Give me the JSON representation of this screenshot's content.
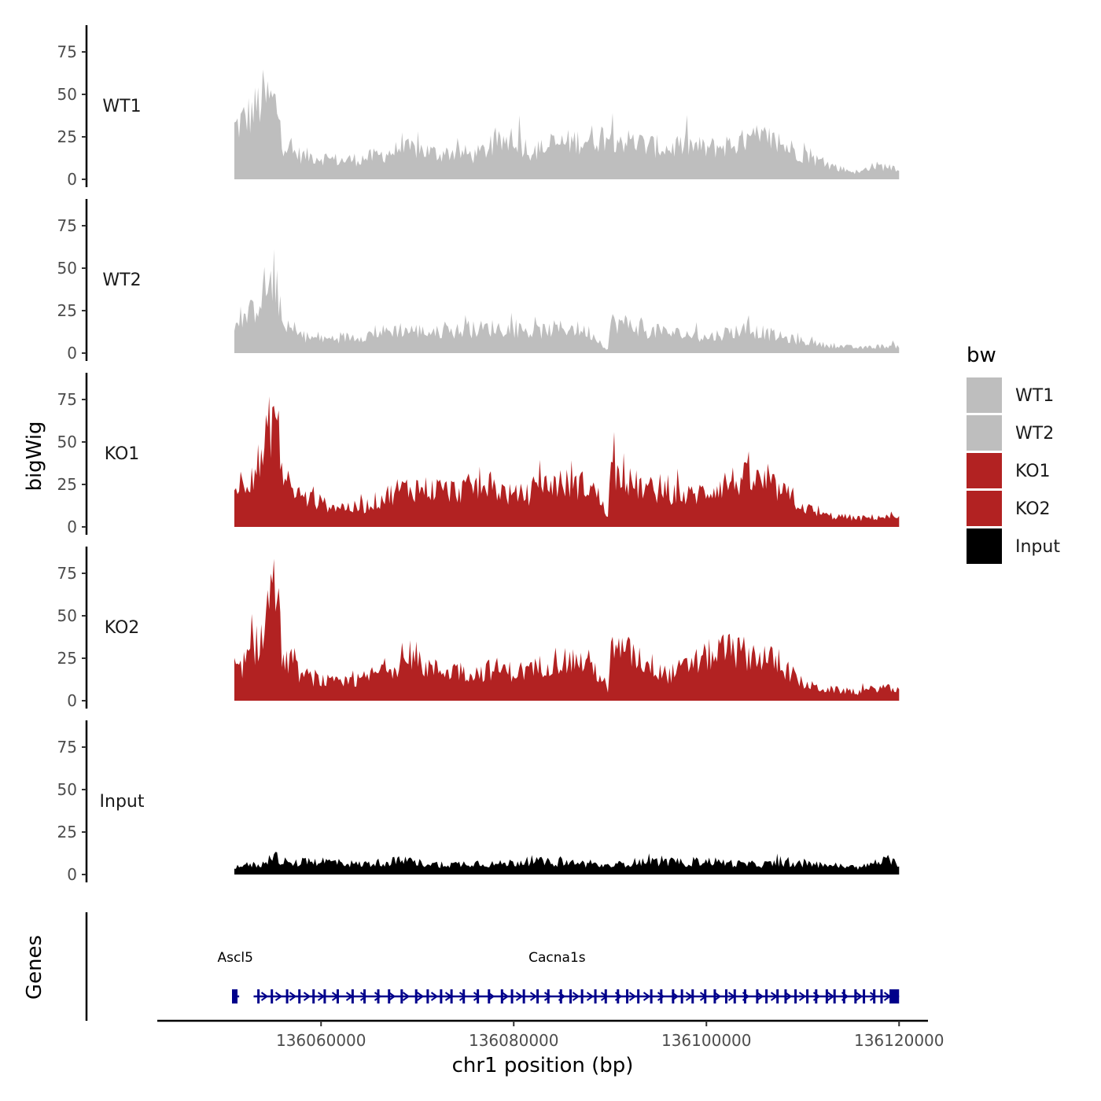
{
  "chart_data": {
    "type": "area",
    "description": "Genome browser coverage tracks (bigWig) with gene annotation",
    "ylabel": "bigWig",
    "genes_label": "Genes",
    "xlabel": "chr1 position (bp)",
    "x_range": [
      136043000,
      136123000
    ],
    "data_x_range": [
      136051000,
      136120000
    ],
    "x_ticks": [
      136060000,
      136080000,
      136100000,
      136120000
    ],
    "x_tick_labels": [
      "136060000",
      "136080000",
      "136100000",
      "136120000"
    ],
    "y_range": [
      0,
      90
    ],
    "y_ticks": [
      0,
      25,
      50,
      75
    ],
    "y_tick_labels": [
      "0",
      "25",
      "50",
      "75"
    ],
    "legend": {
      "title": "bw",
      "position": "right",
      "entries": [
        {
          "label": "WT1",
          "color": "#bebebe"
        },
        {
          "label": "WT2",
          "color": "#bebebe"
        },
        {
          "label": "KO1",
          "color": "#b22222"
        },
        {
          "label": "KO2",
          "color": "#b22222"
        },
        {
          "label": "Input",
          "color": "#000000"
        }
      ]
    },
    "tracks": [
      {
        "name": "WT1",
        "color": "#bebebe",
        "profile": [
          [
            136051000,
            30
          ],
          [
            136052000,
            35
          ],
          [
            136053000,
            40
          ],
          [
            136054000,
            48
          ],
          [
            136055000,
            45
          ],
          [
            136055500,
            42
          ],
          [
            136056000,
            22
          ],
          [
            136057000,
            16
          ],
          [
            136058000,
            14
          ],
          [
            136060000,
            13
          ],
          [
            136062000,
            11
          ],
          [
            136064000,
            12
          ],
          [
            136066000,
            14
          ],
          [
            136068000,
            17
          ],
          [
            136070000,
            18
          ],
          [
            136072000,
            15
          ],
          [
            136074000,
            16
          ],
          [
            136076000,
            14
          ],
          [
            136078000,
            20
          ],
          [
            136080000,
            24
          ],
          [
            136082000,
            16
          ],
          [
            136084000,
            20
          ],
          [
            136086000,
            22
          ],
          [
            136088000,
            24
          ],
          [
            136090000,
            26
          ],
          [
            136092000,
            22
          ],
          [
            136094000,
            20
          ],
          [
            136096000,
            18
          ],
          [
            136098000,
            20
          ],
          [
            136100000,
            18
          ],
          [
            136102000,
            20
          ],
          [
            136104000,
            22
          ],
          [
            136106000,
            24
          ],
          [
            136108000,
            20
          ],
          [
            136110000,
            15
          ],
          [
            136112000,
            10
          ],
          [
            136114000,
            6
          ],
          [
            136116000,
            4
          ],
          [
            136117000,
            8
          ],
          [
            136120000,
            7
          ]
        ]
      },
      {
        "name": "WT2",
        "color": "#bebebe",
        "profile": [
          [
            136051000,
            14
          ],
          [
            136052000,
            20
          ],
          [
            136053000,
            25
          ],
          [
            136054000,
            38
          ],
          [
            136055000,
            40
          ],
          [
            136055500,
            36
          ],
          [
            136056000,
            16
          ],
          [
            136058000,
            10
          ],
          [
            136060000,
            8
          ],
          [
            136062000,
            9
          ],
          [
            136064000,
            10
          ],
          [
            136066000,
            12
          ],
          [
            136068000,
            14
          ],
          [
            136070000,
            13
          ],
          [
            136072000,
            12
          ],
          [
            136074000,
            13
          ],
          [
            136076000,
            14
          ],
          [
            136078000,
            15
          ],
          [
            136080000,
            14
          ],
          [
            136082000,
            12
          ],
          [
            136084000,
            14
          ],
          [
            136086000,
            15
          ],
          [
            136088000,
            12
          ],
          [
            136089800,
            2
          ],
          [
            136090000,
            18
          ],
          [
            136092000,
            17
          ],
          [
            136094000,
            13
          ],
          [
            136096000,
            12
          ],
          [
            136098000,
            11
          ],
          [
            136100000,
            9
          ],
          [
            136102000,
            12
          ],
          [
            136104000,
            14
          ],
          [
            136106000,
            12
          ],
          [
            136108000,
            9
          ],
          [
            136110000,
            7
          ],
          [
            136112000,
            5
          ],
          [
            136114000,
            4
          ],
          [
            136116000,
            3
          ],
          [
            136118000,
            4
          ],
          [
            136120000,
            4
          ]
        ]
      },
      {
        "name": "KO1",
        "color": "#b22222",
        "profile": [
          [
            136051000,
            22
          ],
          [
            136052000,
            28
          ],
          [
            136053000,
            34
          ],
          [
            136054000,
            40
          ],
          [
            136055000,
            70
          ],
          [
            136055500,
            58
          ],
          [
            136056000,
            30
          ],
          [
            136057000,
            22
          ],
          [
            136058000,
            18
          ],
          [
            136060000,
            14
          ],
          [
            136062000,
            12
          ],
          [
            136064000,
            11
          ],
          [
            136066000,
            16
          ],
          [
            136068000,
            22
          ],
          [
            136070000,
            23
          ],
          [
            136072000,
            22
          ],
          [
            136074000,
            21
          ],
          [
            136076000,
            24
          ],
          [
            136078000,
            23
          ],
          [
            136080000,
            18
          ],
          [
            136082000,
            20
          ],
          [
            136084000,
            26
          ],
          [
            136086000,
            25
          ],
          [
            136088000,
            24
          ],
          [
            136089500,
            12
          ],
          [
            136089800,
            3
          ],
          [
            136090000,
            32
          ],
          [
            136092000,
            26
          ],
          [
            136094000,
            22
          ],
          [
            136096000,
            20
          ],
          [
            136098000,
            18
          ],
          [
            136100000,
            21
          ],
          [
            136102000,
            26
          ],
          [
            136104000,
            28
          ],
          [
            136106000,
            26
          ],
          [
            136108000,
            20
          ],
          [
            136110000,
            12
          ],
          [
            136112000,
            7
          ],
          [
            136114000,
            6
          ],
          [
            136116000,
            5
          ],
          [
            136118000,
            6
          ],
          [
            136120000,
            5
          ]
        ]
      },
      {
        "name": "KO2",
        "color": "#b22222",
        "profile": [
          [
            136051000,
            15
          ],
          [
            136052000,
            22
          ],
          [
            136053000,
            30
          ],
          [
            136054000,
            40
          ],
          [
            136055000,
            72
          ],
          [
            136055500,
            55
          ],
          [
            136056000,
            26
          ],
          [
            136057000,
            20
          ],
          [
            136058000,
            15
          ],
          [
            136060000,
            12
          ],
          [
            136062000,
            10
          ],
          [
            136064000,
            12
          ],
          [
            136066000,
            17
          ],
          [
            136068000,
            22
          ],
          [
            136070000,
            22
          ],
          [
            136072000,
            18
          ],
          [
            136074000,
            18
          ],
          [
            136076000,
            16
          ],
          [
            136078000,
            19
          ],
          [
            136080000,
            17
          ],
          [
            136082000,
            18
          ],
          [
            136084000,
            24
          ],
          [
            136086000,
            24
          ],
          [
            136088000,
            22
          ],
          [
            136089500,
            10
          ],
          [
            136089800,
            3
          ],
          [
            136090000,
            30
          ],
          [
            136092000,
            28
          ],
          [
            136094000,
            22
          ],
          [
            136096000,
            15
          ],
          [
            136098000,
            20
          ],
          [
            136100000,
            26
          ],
          [
            136102000,
            30
          ],
          [
            136104000,
            28
          ],
          [
            136106000,
            26
          ],
          [
            136108000,
            20
          ],
          [
            136110000,
            10
          ],
          [
            136112000,
            7
          ],
          [
            136114000,
            6
          ],
          [
            136116000,
            5
          ],
          [
            136118000,
            8
          ],
          [
            136120000,
            6
          ]
        ]
      },
      {
        "name": "Input",
        "color": "#000000",
        "profile": [
          [
            136051000,
            5
          ],
          [
            136054000,
            6
          ],
          [
            136055000,
            12
          ],
          [
            136055500,
            10
          ],
          [
            136056000,
            6
          ],
          [
            136058000,
            7
          ],
          [
            136060000,
            8
          ],
          [
            136062000,
            7
          ],
          [
            136064000,
            6
          ],
          [
            136066000,
            7
          ],
          [
            136068000,
            8
          ],
          [
            136070000,
            7
          ],
          [
            136072000,
            6
          ],
          [
            136074000,
            6
          ],
          [
            136076000,
            7
          ],
          [
            136078000,
            6
          ],
          [
            136080000,
            7
          ],
          [
            136082000,
            8
          ],
          [
            136084000,
            7
          ],
          [
            136086000,
            7
          ],
          [
            136088000,
            6
          ],
          [
            136090000,
            5
          ],
          [
            136092000,
            7
          ],
          [
            136094000,
            8
          ],
          [
            136096000,
            7
          ],
          [
            136098000,
            7
          ],
          [
            136100000,
            8
          ],
          [
            136102000,
            7
          ],
          [
            136104000,
            6
          ],
          [
            136106000,
            6
          ],
          [
            136108000,
            7
          ],
          [
            136110000,
            6
          ],
          [
            136112000,
            6
          ],
          [
            136114000,
            5
          ],
          [
            136116000,
            4
          ],
          [
            136118000,
            8
          ],
          [
            136120000,
            7
          ]
        ]
      }
    ],
    "genes": [
      {
        "name": "Ascl5",
        "start": 136051000,
        "end": 136051500,
        "strand": "+",
        "color": "#00008b",
        "label_x": 136051100
      },
      {
        "name": "Cacna1s",
        "start": 136053000,
        "end": 136120000,
        "strand": "+",
        "color": "#00008b",
        "label_x": 136084500
      }
    ]
  }
}
